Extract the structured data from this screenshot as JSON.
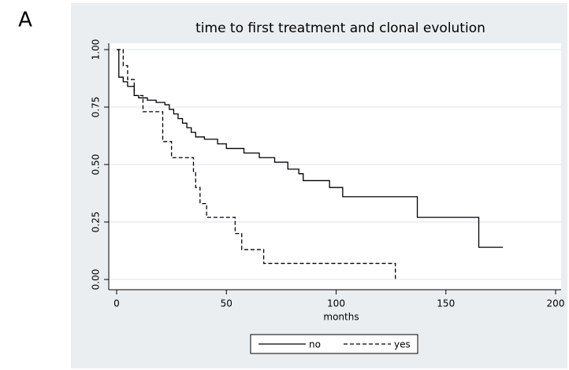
{
  "panel_label": "A",
  "chart_data": {
    "type": "step",
    "title": "time to first treatment and clonal evolution",
    "x_label": "months",
    "xlim": [
      0,
      200
    ],
    "xticks": [
      0,
      50,
      100,
      150,
      200
    ],
    "ylim": [
      0,
      1
    ],
    "yticks": [
      {
        "value": 0,
        "label": "0.00"
      },
      {
        "value": 0.25,
        "label": "0.25"
      },
      {
        "value": 0.5,
        "label": "0.50"
      },
      {
        "value": 0.75,
        "label": "0.75"
      },
      {
        "value": 1,
        "label": "1.00"
      }
    ],
    "grid": true,
    "series": [
      {
        "name": "no",
        "color": "#000000",
        "linestyle": "solid",
        "x": [
          0,
          1,
          3,
          5,
          8,
          10,
          14,
          18,
          22,
          24,
          26,
          28,
          30,
          32,
          34,
          36,
          40,
          46,
          50,
          58,
          65,
          72,
          78,
          83,
          85,
          97,
          103,
          137,
          165,
          176
        ],
        "values": [
          1,
          0.88,
          0.86,
          0.84,
          0.8,
          0.79,
          0.78,
          0.77,
          0.76,
          0.74,
          0.72,
          0.7,
          0.68,
          0.66,
          0.64,
          0.62,
          0.61,
          0.59,
          0.57,
          0.55,
          0.53,
          0.51,
          0.48,
          0.46,
          0.43,
          0.4,
          0.36,
          0.27,
          0.14,
          0.14
        ]
      },
      {
        "name": "yes",
        "color": "#000000",
        "linestyle": "dashed",
        "x": [
          0,
          3,
          5,
          8,
          12,
          21,
          25,
          35,
          36,
          38,
          41,
          54,
          57,
          67,
          127
        ],
        "values": [
          1,
          0.93,
          0.87,
          0.8,
          0.73,
          0.6,
          0.53,
          0.47,
          0.4,
          0.33,
          0.27,
          0.2,
          0.13,
          0.07,
          0
        ]
      }
    ]
  }
}
